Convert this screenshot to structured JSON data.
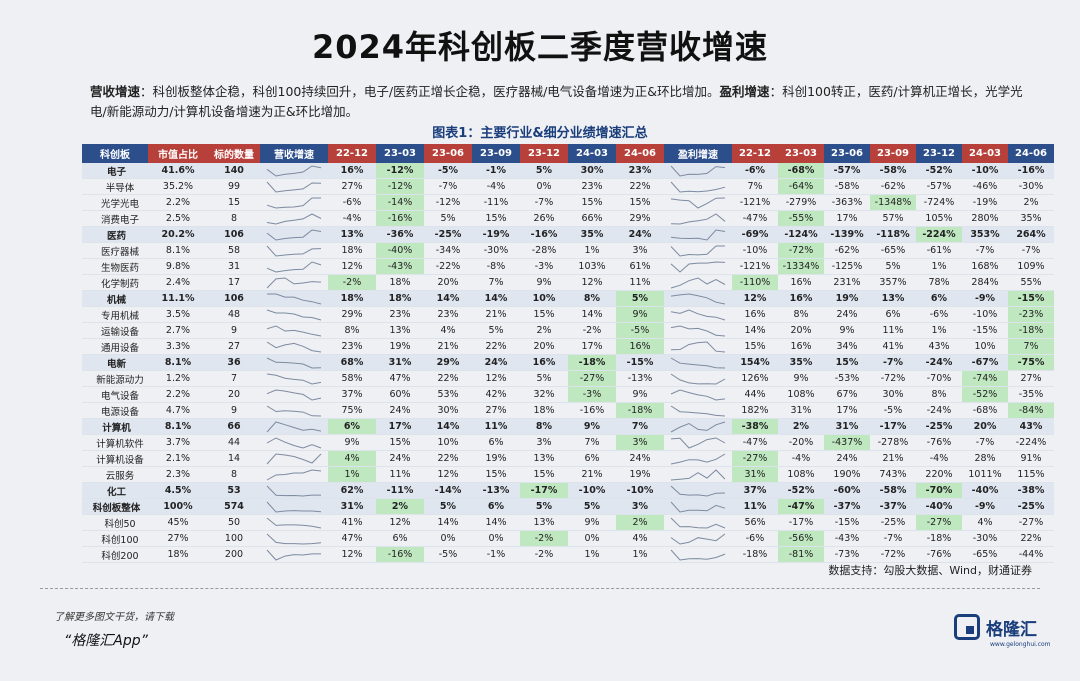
{
  "title": "2024年科创板二季度营收增速",
  "desc": {
    "label1": "营收增速",
    "text1": "：科创板整体企稳，科创100持续回升，电子/医药正增长企稳，医疗器械/电气设备增速为正&环比增加。",
    "label2": "盈利增速",
    "text2": "：科创100转正，医药/计算机正增长，光学光电/新能源动力/计算机设备增速为正&环比增加。"
  },
  "caption": "图表1：主要行业&细分业绩增速汇总",
  "headers": {
    "cat": "科创板",
    "mcap": "市值占比",
    "count": "标的数量",
    "rev_spark": "营收增速",
    "rev_q": [
      "22-12",
      "23-03",
      "23-06",
      "23-09",
      "23-12",
      "24-03",
      "24-06"
    ],
    "profit_spark": "盈利增速",
    "profit_q": [
      "22-12",
      "23-03",
      "23-06",
      "23-09",
      "23-12",
      "24-03",
      "24-06"
    ]
  },
  "rows": [
    {
      "name": "电子",
      "type": "group",
      "mcap": "41.6%",
      "count": "140",
      "rev": [
        "16%",
        "-12%",
        "-5%",
        "-1%",
        "5%",
        "30%",
        "23%"
      ],
      "rev_g": [
        1
      ],
      "profit": [
        "-6%",
        "-68%",
        "-57%",
        "-58%",
        "-52%",
        "-10%",
        "-16%"
      ],
      "profit_g": [
        1
      ]
    },
    {
      "name": "半导体",
      "type": "sub",
      "mcap": "35.2%",
      "count": "99",
      "rev": [
        "27%",
        "-12%",
        "-7%",
        "-4%",
        "0%",
        "23%",
        "22%"
      ],
      "rev_g": [
        1
      ],
      "profit": [
        "7%",
        "-64%",
        "-58%",
        "-62%",
        "-57%",
        "-46%",
        "-30%"
      ],
      "profit_g": [
        1
      ]
    },
    {
      "name": "光学光电",
      "type": "sub",
      "mcap": "2.2%",
      "count": "15",
      "rev": [
        "-6%",
        "-14%",
        "-12%",
        "-11%",
        "-7%",
        "15%",
        "15%"
      ],
      "rev_g": [
        1
      ],
      "profit": [
        "-121%",
        "-279%",
        "-363%",
        "-1348%",
        "-724%",
        "-19%",
        "2%"
      ],
      "profit_g": [
        3
      ]
    },
    {
      "name": "消费电子",
      "type": "sub",
      "mcap": "2.5%",
      "count": "8",
      "rev": [
        "-4%",
        "-16%",
        "5%",
        "15%",
        "26%",
        "66%",
        "29%"
      ],
      "rev_g": [
        1
      ],
      "profit": [
        "-47%",
        "-55%",
        "17%",
        "57%",
        "105%",
        "280%",
        "35%"
      ],
      "profit_g": [
        1
      ]
    },
    {
      "name": "医药",
      "type": "group",
      "mcap": "20.2%",
      "count": "106",
      "rev": [
        "13%",
        "-36%",
        "-25%",
        "-19%",
        "-16%",
        "35%",
        "24%"
      ],
      "rev_g": [],
      "profit": [
        "-69%",
        "-124%",
        "-139%",
        "-118%",
        "-224%",
        "353%",
        "264%"
      ],
      "profit_g": [
        4
      ]
    },
    {
      "name": "医疗器械",
      "type": "sub",
      "mcap": "8.1%",
      "count": "58",
      "rev": [
        "18%",
        "-40%",
        "-34%",
        "-30%",
        "-28%",
        "1%",
        "3%"
      ],
      "rev_g": [
        1
      ],
      "profit": [
        "-10%",
        "-72%",
        "-62%",
        "-65%",
        "-61%",
        "-7%",
        "-7%"
      ],
      "profit_g": [
        1
      ]
    },
    {
      "name": "生物医药",
      "type": "sub",
      "mcap": "9.8%",
      "count": "31",
      "rev": [
        "12%",
        "-43%",
        "-22%",
        "-8%",
        "-3%",
        "103%",
        "61%"
      ],
      "rev_g": [
        1
      ],
      "profit": [
        "-121%",
        "-1334%",
        "-125%",
        "5%",
        "1%",
        "168%",
        "109%"
      ],
      "profit_g": [
        1
      ]
    },
    {
      "name": "化学制药",
      "type": "sub",
      "mcap": "2.4%",
      "count": "17",
      "rev": [
        "-2%",
        "18%",
        "20%",
        "7%",
        "9%",
        "12%",
        "11%"
      ],
      "rev_g": [
        0
      ],
      "profit": [
        "-110%",
        "16%",
        "231%",
        "357%",
        "78%",
        "284%",
        "55%"
      ],
      "profit_g": [
        0
      ]
    },
    {
      "name": "机械",
      "type": "group",
      "mcap": "11.1%",
      "count": "106",
      "rev": [
        "18%",
        "18%",
        "14%",
        "14%",
        "10%",
        "8%",
        "5%"
      ],
      "rev_g": [
        6
      ],
      "profit": [
        "12%",
        "16%",
        "19%",
        "13%",
        "6%",
        "-9%",
        "-15%"
      ],
      "profit_g": [
        6
      ]
    },
    {
      "name": "专用机械",
      "type": "sub",
      "mcap": "3.5%",
      "count": "48",
      "rev": [
        "29%",
        "23%",
        "23%",
        "21%",
        "15%",
        "14%",
        "9%"
      ],
      "rev_g": [
        6
      ],
      "profit": [
        "16%",
        "8%",
        "24%",
        "6%",
        "-6%",
        "-10%",
        "-23%"
      ],
      "profit_g": [
        6
      ]
    },
    {
      "name": "运输设备",
      "type": "sub",
      "mcap": "2.7%",
      "count": "9",
      "rev": [
        "8%",
        "13%",
        "4%",
        "5%",
        "2%",
        "-2%",
        "-5%"
      ],
      "rev_g": [
        6
      ],
      "profit": [
        "14%",
        "20%",
        "9%",
        "11%",
        "1%",
        "-15%",
        "-18%"
      ],
      "profit_g": [
        6
      ]
    },
    {
      "name": "通用设备",
      "type": "sub",
      "mcap": "3.3%",
      "count": "27",
      "rev": [
        "23%",
        "19%",
        "21%",
        "22%",
        "20%",
        "17%",
        "16%"
      ],
      "rev_g": [
        6
      ],
      "profit": [
        "15%",
        "16%",
        "34%",
        "41%",
        "43%",
        "10%",
        "7%"
      ],
      "profit_g": [
        6
      ]
    },
    {
      "name": "电新",
      "type": "group",
      "mcap": "8.1%",
      "count": "36",
      "rev": [
        "68%",
        "31%",
        "29%",
        "24%",
        "16%",
        "-18%",
        "-15%"
      ],
      "rev_g": [
        5
      ],
      "profit": [
        "154%",
        "35%",
        "15%",
        "-7%",
        "-24%",
        "-67%",
        "-75%"
      ],
      "profit_g": [
        6
      ]
    },
    {
      "name": "新能源动力",
      "type": "sub",
      "mcap": "1.2%",
      "count": "7",
      "rev": [
        "58%",
        "47%",
        "22%",
        "12%",
        "5%",
        "-27%",
        "-13%"
      ],
      "rev_g": [
        5
      ],
      "profit": [
        "126%",
        "9%",
        "-53%",
        "-72%",
        "-70%",
        "-74%",
        "27%"
      ],
      "profit_g": [
        5
      ]
    },
    {
      "name": "电气设备",
      "type": "sub",
      "mcap": "2.2%",
      "count": "20",
      "rev": [
        "37%",
        "60%",
        "53%",
        "42%",
        "32%",
        "-3%",
        "9%"
      ],
      "rev_g": [
        5
      ],
      "profit": [
        "44%",
        "108%",
        "67%",
        "30%",
        "8%",
        "-52%",
        "-35%"
      ],
      "profit_g": [
        5
      ]
    },
    {
      "name": "电源设备",
      "type": "sub",
      "mcap": "4.7%",
      "count": "9",
      "rev": [
        "75%",
        "24%",
        "30%",
        "27%",
        "18%",
        "-16%",
        "-18%"
      ],
      "rev_g": [
        6
      ],
      "profit": [
        "182%",
        "31%",
        "17%",
        "-5%",
        "-24%",
        "-68%",
        "-84%"
      ],
      "profit_g": [
        6
      ]
    },
    {
      "name": "计算机",
      "type": "group",
      "mcap": "8.1%",
      "count": "66",
      "rev": [
        "6%",
        "17%",
        "14%",
        "11%",
        "8%",
        "9%",
        "7%"
      ],
      "rev_g": [
        0
      ],
      "profit": [
        "-38%",
        "2%",
        "31%",
        "-17%",
        "-25%",
        "20%",
        "43%"
      ],
      "profit_g": [
        0
      ]
    },
    {
      "name": "计算机软件",
      "type": "sub",
      "mcap": "3.7%",
      "count": "44",
      "rev": [
        "9%",
        "15%",
        "10%",
        "6%",
        "3%",
        "7%",
        "3%"
      ],
      "rev_g": [
        6
      ],
      "profit": [
        "-47%",
        "-20%",
        "-437%",
        "-278%",
        "-76%",
        "-7%",
        "-224%"
      ],
      "profit_g": [
        2
      ]
    },
    {
      "name": "计算机设备",
      "type": "sub",
      "mcap": "2.1%",
      "count": "14",
      "rev": [
        "4%",
        "24%",
        "22%",
        "19%",
        "13%",
        "6%",
        "24%"
      ],
      "rev_g": [
        0
      ],
      "profit": [
        "-27%",
        "-4%",
        "24%",
        "21%",
        "-4%",
        "28%",
        "91%"
      ],
      "profit_g": [
        0
      ]
    },
    {
      "name": "云服务",
      "type": "sub",
      "mcap": "2.3%",
      "count": "8",
      "rev": [
        "1%",
        "11%",
        "12%",
        "15%",
        "15%",
        "21%",
        "19%"
      ],
      "rev_g": [
        0
      ],
      "profit": [
        "31%",
        "108%",
        "190%",
        "743%",
        "220%",
        "1011%",
        "115%"
      ],
      "profit_g": [
        0
      ]
    },
    {
      "name": "化工",
      "type": "group",
      "mcap": "4.5%",
      "count": "53",
      "rev": [
        "62%",
        "-11%",
        "-14%",
        "-13%",
        "-17%",
        "-10%",
        "-10%"
      ],
      "rev_g": [
        4
      ],
      "profit": [
        "37%",
        "-52%",
        "-60%",
        "-58%",
        "-70%",
        "-40%",
        "-38%"
      ],
      "profit_g": [
        4
      ]
    },
    {
      "name": "科创板整体",
      "type": "group",
      "mcap": "100%",
      "count": "574",
      "rev": [
        "31%",
        "2%",
        "5%",
        "6%",
        "5%",
        "5%",
        "3%"
      ],
      "rev_g": [
        1
      ],
      "profit": [
        "11%",
        "-47%",
        "-37%",
        "-37%",
        "-40%",
        "-9%",
        "-25%"
      ],
      "profit_g": [
        1
      ]
    },
    {
      "name": "科创50",
      "type": "sub",
      "mcap": "45%",
      "count": "50",
      "rev": [
        "41%",
        "12%",
        "14%",
        "14%",
        "13%",
        "9%",
        "2%"
      ],
      "rev_g": [
        6
      ],
      "profit": [
        "56%",
        "-17%",
        "-15%",
        "-25%",
        "-27%",
        "4%",
        "-27%"
      ],
      "profit_g": [
        4
      ]
    },
    {
      "name": "科创100",
      "type": "sub",
      "mcap": "27%",
      "count": "100",
      "rev": [
        "47%",
        "6%",
        "0%",
        "0%",
        "-2%",
        "0%",
        "4%"
      ],
      "rev_g": [
        4
      ],
      "profit": [
        "-6%",
        "-56%",
        "-43%",
        "-7%",
        "-18%",
        "-30%",
        "22%"
      ],
      "profit_g": [
        1
      ]
    },
    {
      "name": "科创200",
      "type": "sub",
      "mcap": "18%",
      "count": "200",
      "rev": [
        "12%",
        "-16%",
        "-5%",
        "-1%",
        "-2%",
        "1%",
        "1%"
      ],
      "rev_g": [
        1
      ],
      "profit": [
        "-18%",
        "-81%",
        "-73%",
        "-72%",
        "-76%",
        "-65%",
        "-44%"
      ],
      "profit_g": [
        1
      ]
    }
  ],
  "source": "数据支持：勾股大数据、Wind，财通证券",
  "footer": {
    "line1": "了解更多图文干货，请下载",
    "line2": "“格隆汇App”"
  },
  "logo": {
    "text": "格隆汇",
    "sub": "www.gelonghui.com"
  },
  "colors": {
    "header_blue": "#2c4f8c",
    "header_red": "#b8403a",
    "highlight_green": "#bfe8c0",
    "group_bg": "#dfe6f0"
  }
}
